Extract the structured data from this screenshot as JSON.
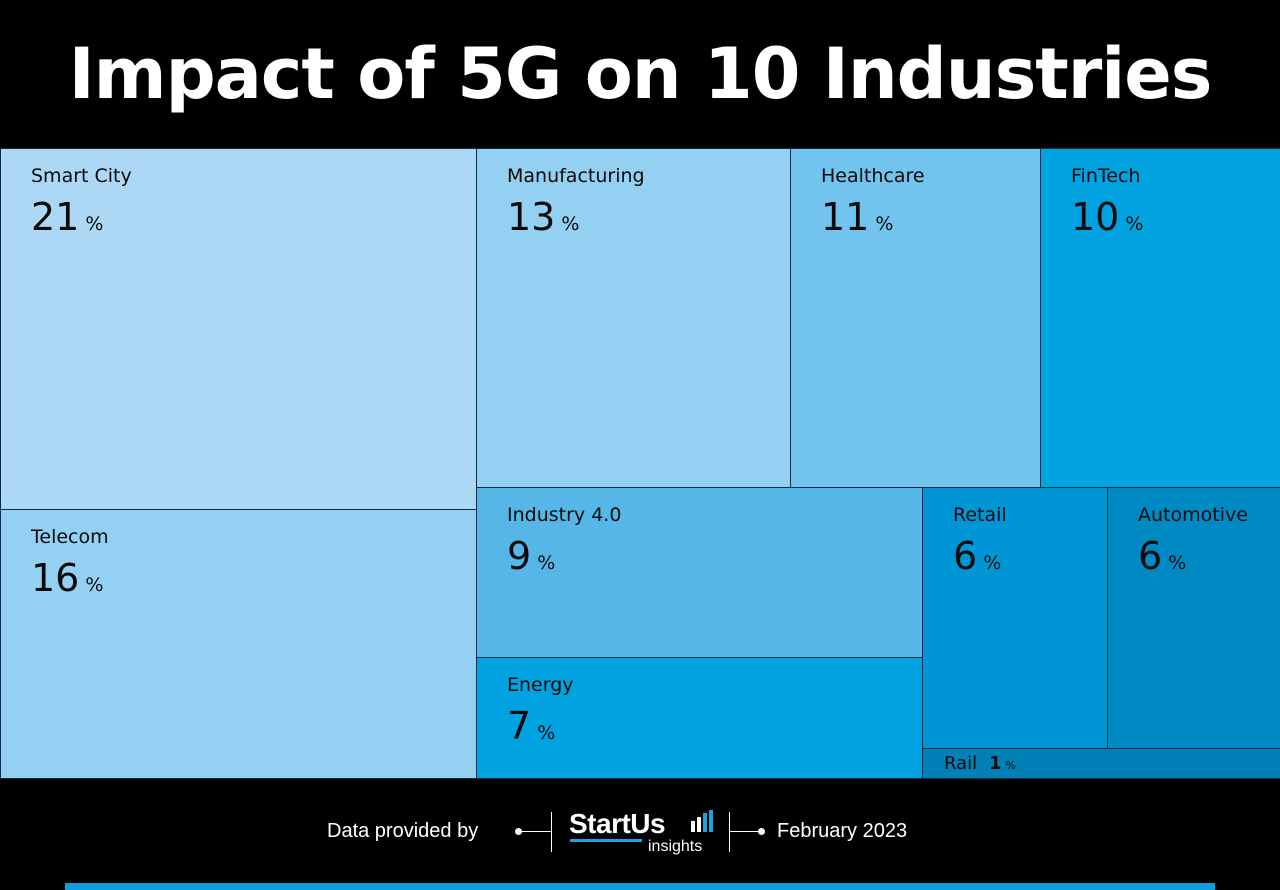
{
  "title": "Impact of 5G on 10 Industries",
  "chart_data": {
    "type": "treemap",
    "unit": "%",
    "items": [
      {
        "label": "Smart City",
        "value": 21,
        "color": "#acd8f5"
      },
      {
        "label": "Telecom",
        "value": 16,
        "color": "#94d0f2"
      },
      {
        "label": "Manufacturing",
        "value": 13,
        "color": "#94d0f2"
      },
      {
        "label": "Healthcare",
        "value": 11,
        "color": "#72c3ee"
      },
      {
        "label": "FinTech",
        "value": 10,
        "color": "#00a2e0"
      },
      {
        "label": "Industry 4.0",
        "value": 9,
        "color": "#56b6e7"
      },
      {
        "label": "Energy",
        "value": 7,
        "color": "#00a2e0"
      },
      {
        "label": "Retail",
        "value": 6,
        "color": "#0096d6"
      },
      {
        "label": "Automotive",
        "value": 6,
        "color": "#008ac3"
      },
      {
        "label": "Rail",
        "value": 1,
        "color": "#0080b7"
      }
    ]
  },
  "footer": {
    "provided_label": "Data provided by",
    "logo_main": "StartUs",
    "logo_sub": "insights",
    "date": "February 2023",
    "accent_color": "#0ca1de"
  }
}
